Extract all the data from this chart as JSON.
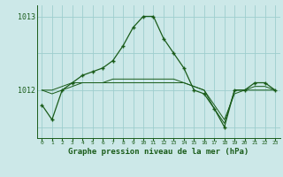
{
  "title": "Graphe pression niveau de la mer (hPa)",
  "bg_color": "#cce8e8",
  "line_color": "#1a5c1a",
  "grid_color": "#9ecece",
  "hours": [
    0,
    1,
    2,
    3,
    4,
    5,
    6,
    7,
    8,
    9,
    10,
    11,
    12,
    13,
    14,
    15,
    16,
    17,
    18,
    19,
    20,
    21,
    22,
    23
  ],
  "line1": [
    1011.8,
    1011.6,
    1012.0,
    1012.1,
    1012.2,
    1012.25,
    1012.3,
    1012.4,
    1012.6,
    1012.85,
    1013.0,
    1013.0,
    1012.7,
    1012.5,
    1012.3,
    1012.0,
    1011.95,
    1011.75,
    1011.5,
    1012.0,
    1012.0,
    1012.1,
    1012.1,
    1012.0
  ],
  "line2": [
    1012.0,
    1012.0,
    1012.05,
    1012.1,
    1012.1,
    1012.1,
    1012.1,
    1012.1,
    1012.1,
    1012.1,
    1012.1,
    1012.1,
    1012.1,
    1012.1,
    1012.1,
    1012.05,
    1012.0,
    1011.75,
    1011.55,
    1012.0,
    1012.0,
    1012.0,
    1012.0,
    1012.0
  ],
  "line3": [
    1012.0,
    1011.95,
    1012.0,
    1012.05,
    1012.1,
    1012.1,
    1012.1,
    1012.15,
    1012.15,
    1012.15,
    1012.15,
    1012.15,
    1012.15,
    1012.15,
    1012.1,
    1012.05,
    1012.0,
    1011.8,
    1011.6,
    1011.95,
    1012.0,
    1012.05,
    1012.05,
    1012.0
  ],
  "ylim": [
    1011.35,
    1013.15
  ],
  "yticks": [
    1012,
    1013
  ],
  "xlim": [
    -0.5,
    23.5
  ]
}
